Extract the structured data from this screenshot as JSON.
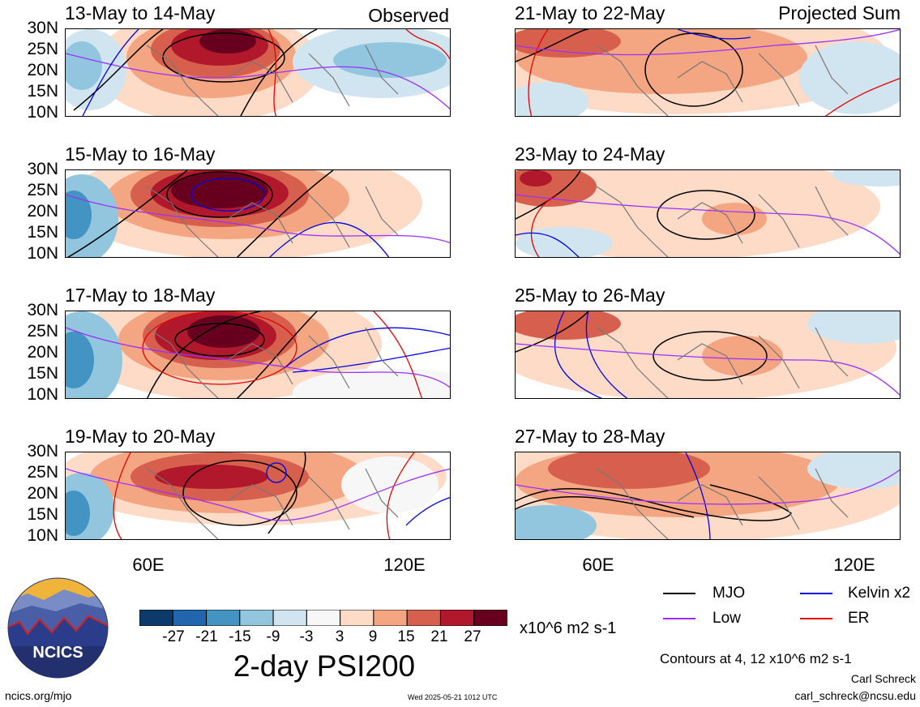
{
  "header": {
    "observed_label": "Observed",
    "projected_label": "Projected Sum"
  },
  "panels": [
    {
      "title": "13-May to 14-May"
    },
    {
      "title": "15-May to 16-May"
    },
    {
      "title": "17-May to 18-May"
    },
    {
      "title": "19-May to 20-May"
    },
    {
      "title": "21-May to 22-May"
    },
    {
      "title": "23-May to 24-May"
    },
    {
      "title": "25-May to 26-May"
    },
    {
      "title": "27-May to 28-May"
    }
  ],
  "lat_labels": [
    "30N",
    "25N",
    "20N",
    "15N",
    "10N"
  ],
  "lon_labels": [
    "60E",
    "120E"
  ],
  "colorbar": {
    "labels": [
      "-27",
      "-21",
      "-15",
      "-9",
      "-3",
      "3",
      "9",
      "15",
      "21",
      "27"
    ],
    "colors": [
      "#0b3a6b",
      "#2166ac",
      "#4393c3",
      "#92c5de",
      "#d1e5f0",
      "#f7f7f7",
      "#fddbc7",
      "#f4a582",
      "#d6604d",
      "#b2182b",
      "#67001f"
    ],
    "unit": "x10^6 m2 s-1",
    "title": "2-day PSI200"
  },
  "legend": {
    "mjo": {
      "label": "MJO",
      "color": "#000000"
    },
    "kelvin": {
      "label": "Kelvin x2",
      "color": "#0000e6"
    },
    "low": {
      "label": "Low",
      "color": "#9b30ff"
    },
    "er": {
      "label": "ER",
      "color": "#e60000"
    }
  },
  "contours_note": "Contours at 4, 12 x10^6 m2 s-1",
  "footer": {
    "url": "ncics.org/mjo",
    "timestamp": "Wed 2025-05-21 1012 UTC",
    "author": "Carl Schreck",
    "email": "carl_schreck@ncsu.edu",
    "logo_text": "NCICS"
  }
}
